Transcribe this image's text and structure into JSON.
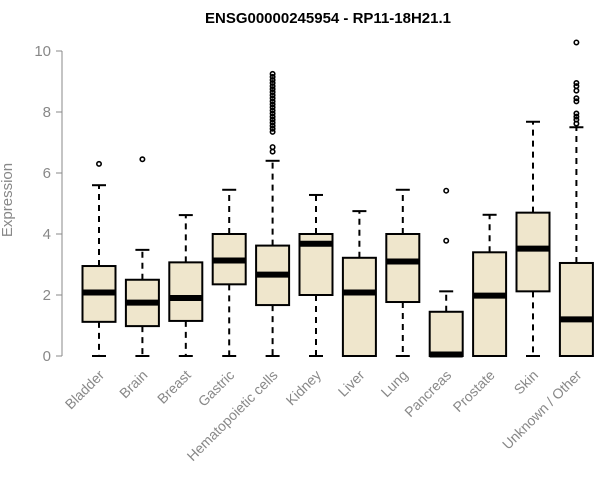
{
  "chart_data": {
    "type": "boxplot",
    "title": "ENSG00000245954 - RP11-18H21.1",
    "xlabel": "",
    "ylabel": "Expression",
    "ylim": [
      0,
      10
    ],
    "yticks": [
      0,
      2,
      4,
      6,
      8,
      10
    ],
    "colors": {
      "box_fill": "#EFE6CC",
      "stroke": "#000000",
      "axis_text": "#888888"
    },
    "categories": [
      "Bladder",
      "Brain",
      "Breast",
      "Gastric",
      "Hematopoietic cells",
      "Kidney",
      "Liver",
      "Lung",
      "Pancreas",
      "Prostate",
      "Skin",
      "Unknown / Other"
    ],
    "boxes": [
      {
        "category": "Bladder",
        "whisker_low": 0,
        "q1": 1.12,
        "median": 2.08,
        "q3": 2.95,
        "whisker_high": 5.6,
        "outliers": [
          6.3
        ]
      },
      {
        "category": "Brain",
        "whisker_low": 0,
        "q1": 0.98,
        "median": 1.75,
        "q3": 2.5,
        "whisker_high": 3.48,
        "outliers": [
          6.45
        ]
      },
      {
        "category": "Breast",
        "whisker_low": 0,
        "q1": 1.15,
        "median": 1.9,
        "q3": 3.07,
        "whisker_high": 4.62,
        "outliers": []
      },
      {
        "category": "Gastric",
        "whisker_low": 0,
        "q1": 2.35,
        "median": 3.13,
        "q3": 4.0,
        "whisker_high": 5.45,
        "outliers": []
      },
      {
        "category": "Hematopoietic cells",
        "whisker_low": 0,
        "q1": 1.67,
        "median": 2.67,
        "q3": 3.62,
        "whisker_high": 6.4,
        "outliers": [
          6.7,
          6.85,
          7.35,
          7.45,
          7.55,
          7.65,
          7.75,
          7.85,
          7.95,
          8.05,
          8.15,
          8.25,
          8.35,
          8.45,
          8.55,
          8.65,
          8.75,
          8.85,
          8.95,
          9.05,
          9.15,
          9.25
        ]
      },
      {
        "category": "Kidney",
        "whisker_low": 0,
        "q1": 2.0,
        "median": 3.68,
        "q3": 4.0,
        "whisker_high": 5.28,
        "outliers": []
      },
      {
        "category": "Liver",
        "whisker_low": 0,
        "q1": 0,
        "median": 2.08,
        "q3": 3.22,
        "whisker_high": 4.75,
        "outliers": []
      },
      {
        "category": "Lung",
        "whisker_low": 0,
        "q1": 1.77,
        "median": 3.1,
        "q3": 4.0,
        "whisker_high": 5.45,
        "outliers": []
      },
      {
        "category": "Pancreas",
        "whisker_low": 0,
        "q1": 0,
        "median": 0.05,
        "q3": 1.45,
        "whisker_high": 2.12,
        "outliers": [
          3.78,
          5.42
        ]
      },
      {
        "category": "Prostate",
        "whisker_low": 0,
        "q1": 0,
        "median": 1.98,
        "q3": 3.4,
        "whisker_high": 4.63,
        "outliers": []
      },
      {
        "category": "Skin",
        "whisker_low": 0,
        "q1": 2.12,
        "median": 3.52,
        "q3": 4.7,
        "whisker_high": 7.68,
        "outliers": []
      },
      {
        "category": "Unknown / Other",
        "whisker_low": 0,
        "q1": 0,
        "median": 1.2,
        "q3": 3.05,
        "whisker_high": 7.5,
        "outliers": [
          7.62,
          7.75,
          7.85,
          7.95,
          8.35,
          8.45,
          8.7,
          8.85,
          8.95,
          10.28
        ]
      }
    ]
  }
}
